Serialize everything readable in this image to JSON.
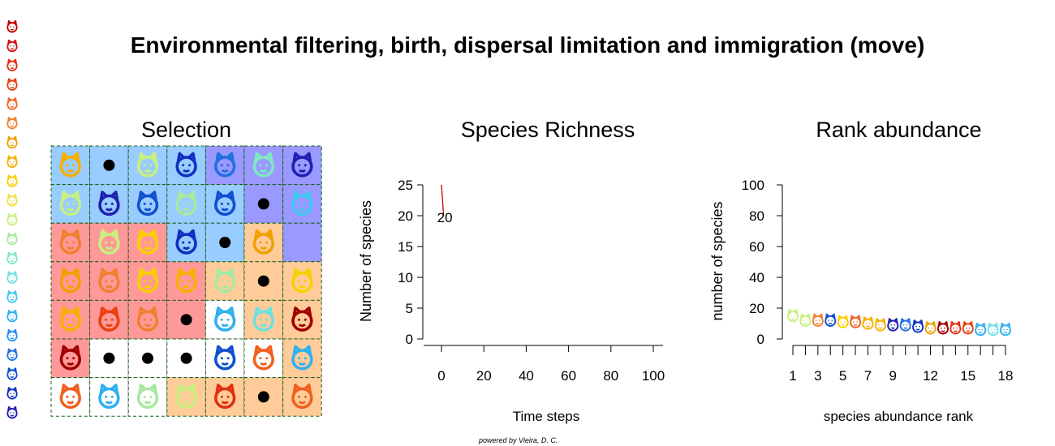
{
  "title": "Environmental filtering, birth, dispersal limitation and immigration (move)",
  "credit": "powered by Vieira, D. C.",
  "legend_icons": [
    {
      "icon": "fox-icon",
      "color": "#c00000"
    },
    {
      "icon": "fox-icon",
      "color": "#d01010"
    },
    {
      "icon": "cat-icon",
      "color": "#e03010"
    },
    {
      "icon": "cow-icon",
      "color": "#e84010"
    },
    {
      "icon": "raccoon-icon",
      "color": "#f06020"
    },
    {
      "icon": "pig-icon",
      "color": "#f08030"
    },
    {
      "icon": "horse-icon",
      "color": "#f0a000"
    },
    {
      "icon": "dog-icon",
      "color": "#f8b000"
    },
    {
      "icon": "unicorn-icon",
      "color": "#f8d000"
    },
    {
      "icon": "goat-icon",
      "color": "#f0e040"
    },
    {
      "icon": "sheep-icon",
      "color": "#c8f080"
    },
    {
      "icon": "cat-icon",
      "color": "#a8e8a0"
    },
    {
      "icon": "monkey-icon",
      "color": "#80e8c0"
    },
    {
      "icon": "dog-icon",
      "color": "#70e0e0"
    },
    {
      "icon": "horse-icon",
      "color": "#40c8f0"
    },
    {
      "icon": "gorilla-icon",
      "color": "#30b0f0"
    },
    {
      "icon": "wolf-icon",
      "color": "#2090f0"
    },
    {
      "icon": "goat-icon",
      "color": "#2070e0"
    },
    {
      "icon": "lion-icon",
      "color": "#1050d0"
    },
    {
      "icon": "llama-icon",
      "color": "#1030c0"
    },
    {
      "icon": "tiger-icon",
      "color": "#2020b0"
    }
  ],
  "selection": {
    "title": "Selection",
    "colors": {
      "blue": "#99ccff",
      "purple": "#9999ff",
      "red": "#ff9999",
      "orange": "#ffcc99",
      "white": "#ffffff"
    },
    "grid": [
      [
        {
          "bg": "blue",
          "occupant": "dog-icon",
          "color": "#f8b000"
        },
        {
          "bg": "blue",
          "occupant": "empty"
        },
        {
          "bg": "blue",
          "occupant": "sheep-icon",
          "color": "#c8f080"
        },
        {
          "bg": "blue",
          "occupant": "llama-icon",
          "color": "#1030c0"
        },
        {
          "bg": "purple",
          "occupant": "goat-icon",
          "color": "#2070e0"
        },
        {
          "bg": "purple",
          "occupant": "monkey-icon",
          "color": "#80e8c0"
        },
        {
          "bg": "purple",
          "occupant": "tiger-icon",
          "color": "#2020b0"
        }
      ],
      [
        {
          "bg": "blue",
          "occupant": "sheep-icon",
          "color": "#c8f080"
        },
        {
          "bg": "blue",
          "occupant": "tiger-icon",
          "color": "#2020b0"
        },
        {
          "bg": "blue",
          "occupant": "lion-icon",
          "color": "#1050d0"
        },
        {
          "bg": "blue",
          "occupant": "cat-icon",
          "color": "#a8e8a0"
        },
        {
          "bg": "blue",
          "occupant": "lion-icon",
          "color": "#1050d0"
        },
        {
          "bg": "purple",
          "occupant": "empty"
        },
        {
          "bg": "purple",
          "occupant": "goat-icon",
          "color": "#40c8f0"
        }
      ],
      [
        {
          "bg": "red",
          "occupant": "pig-icon",
          "color": "#f08030"
        },
        {
          "bg": "red",
          "occupant": "sheep-icon",
          "color": "#c8f080"
        },
        {
          "bg": "red",
          "occupant": "unicorn-icon",
          "color": "#f8d000"
        },
        {
          "bg": "blue",
          "occupant": "llama-icon",
          "color": "#1030c0"
        },
        {
          "bg": "blue",
          "occupant": "empty"
        },
        {
          "bg": "orange",
          "occupant": "horse-icon",
          "color": "#f0a000"
        },
        {
          "bg": "purple",
          "occupant": "none"
        }
      ],
      [
        {
          "bg": "red",
          "occupant": "fox-icon",
          "color": "#f0a000"
        },
        {
          "bg": "red",
          "occupant": "pig-icon",
          "color": "#f08030"
        },
        {
          "bg": "red",
          "occupant": "unicorn-icon",
          "color": "#f8d000"
        },
        {
          "bg": "red",
          "occupant": "horse-icon",
          "color": "#f8b000"
        },
        {
          "bg": "orange",
          "occupant": "cat-icon",
          "color": "#a8e8a0"
        },
        {
          "bg": "orange",
          "occupant": "empty"
        },
        {
          "bg": "orange",
          "occupant": "unicorn-icon",
          "color": "#f8d000"
        }
      ],
      [
        {
          "bg": "red",
          "occupant": "dog-icon",
          "color": "#f8b000"
        },
        {
          "bg": "red",
          "occupant": "cow-icon",
          "color": "#e84010"
        },
        {
          "bg": "red",
          "occupant": "pig-icon",
          "color": "#f08030"
        },
        {
          "bg": "red",
          "occupant": "empty"
        },
        {
          "bg": "white",
          "occupant": "wolf-icon",
          "color": "#30b0f0"
        },
        {
          "bg": "orange",
          "occupant": "dog-icon",
          "color": "#70e0e0"
        },
        {
          "bg": "orange",
          "occupant": "dog-icon",
          "color": "#a00000"
        }
      ],
      [
        {
          "bg": "red",
          "occupant": "dog-icon",
          "color": "#a00000"
        },
        {
          "bg": "white",
          "occupant": "empty"
        },
        {
          "bg": "white",
          "occupant": "empty"
        },
        {
          "bg": "white",
          "occupant": "empty"
        },
        {
          "bg": "white",
          "occupant": "lion-icon",
          "color": "#1050d0"
        },
        {
          "bg": "white",
          "occupant": "raccoon-icon",
          "color": "#f06020"
        },
        {
          "bg": "orange",
          "occupant": "horse-icon",
          "color": "#30b0f0"
        }
      ],
      [
        {
          "bg": "white",
          "occupant": "raccoon-icon",
          "color": "#f06020"
        },
        {
          "bg": "white",
          "occupant": "gorilla-icon",
          "color": "#30b0f0"
        },
        {
          "bg": "white",
          "occupant": "cat-icon",
          "color": "#a8e8a0"
        },
        {
          "bg": "orange",
          "occupant": "sheep-icon",
          "color": "#c8f080"
        },
        {
          "bg": "orange",
          "occupant": "cat-icon",
          "color": "#e03010"
        },
        {
          "bg": "orange",
          "occupant": "empty"
        },
        {
          "bg": "orange",
          "occupant": "raccoon-icon",
          "color": "#f06020"
        }
      ]
    ]
  },
  "chart_data": [
    {
      "type": "line",
      "title": "Species Richness",
      "xlabel": "Time steps",
      "ylabel": "Number of species",
      "xlim": [
        0,
        100
      ],
      "ylim": [
        0,
        25
      ],
      "xticks": [
        "0",
        "20",
        "40",
        "60",
        "80",
        "100"
      ],
      "yticks": [
        "0",
        "5",
        "10",
        "15",
        "20",
        "25"
      ],
      "series": [
        {
          "x": [
            0,
            1
          ],
          "y": [
            25,
            20
          ],
          "color": "#cc0000"
        }
      ],
      "annotation": {
        "text": "20",
        "x": 1,
        "y": 20,
        "color": "#cc0000"
      }
    },
    {
      "type": "scatter",
      "title": "Rank abundance",
      "xlabel": "species abundance rank",
      "ylabel": "number of species",
      "xlim": [
        1,
        18
      ],
      "ylim": [
        0,
        100
      ],
      "xticks": [
        "1",
        "3",
        "5",
        "7",
        "9",
        "12",
        "15",
        "18"
      ],
      "yticks": [
        "0",
        "20",
        "40",
        "60",
        "80",
        "100"
      ],
      "points": [
        {
          "rank": 1,
          "value": 14,
          "icon": "sheep-icon",
          "color": "#c8f080"
        },
        {
          "rank": 2,
          "value": 11,
          "icon": "sheep-icon",
          "color": "#c8f080"
        },
        {
          "rank": 3,
          "value": 11,
          "icon": "pig-icon",
          "color": "#f08030"
        },
        {
          "rank": 4,
          "value": 11,
          "icon": "lion-icon",
          "color": "#1050d0"
        },
        {
          "rank": 5,
          "value": 10,
          "icon": "unicorn-icon",
          "color": "#f8d000"
        },
        {
          "rank": 6,
          "value": 10,
          "icon": "raccoon-icon",
          "color": "#f06020"
        },
        {
          "rank": 7,
          "value": 9,
          "icon": "horse-icon",
          "color": "#f8b000"
        },
        {
          "rank": 8,
          "value": 8,
          "icon": "dog-icon",
          "color": "#f8b000"
        },
        {
          "rank": 9,
          "value": 8,
          "icon": "tiger-icon",
          "color": "#2020b0"
        },
        {
          "rank": 10,
          "value": 8,
          "icon": "goat-icon",
          "color": "#2070e0"
        },
        {
          "rank": 11,
          "value": 7,
          "icon": "llama-icon",
          "color": "#1030c0"
        },
        {
          "rank": 12,
          "value": 6,
          "icon": "horse-icon",
          "color": "#f0a000"
        },
        {
          "rank": 13,
          "value": 6,
          "icon": "dog-icon",
          "color": "#a00000"
        },
        {
          "rank": 14,
          "value": 6,
          "icon": "cat-icon",
          "color": "#e03010"
        },
        {
          "rank": 15,
          "value": 6,
          "icon": "cow-icon",
          "color": "#e84010"
        },
        {
          "rank": 16,
          "value": 5,
          "icon": "horse-icon",
          "color": "#30b0f0"
        },
        {
          "rank": 17,
          "value": 5,
          "icon": "dog-icon",
          "color": "#70e0e0"
        },
        {
          "rank": 18,
          "value": 5,
          "icon": "wolf-icon",
          "color": "#30b0f0"
        }
      ]
    }
  ]
}
